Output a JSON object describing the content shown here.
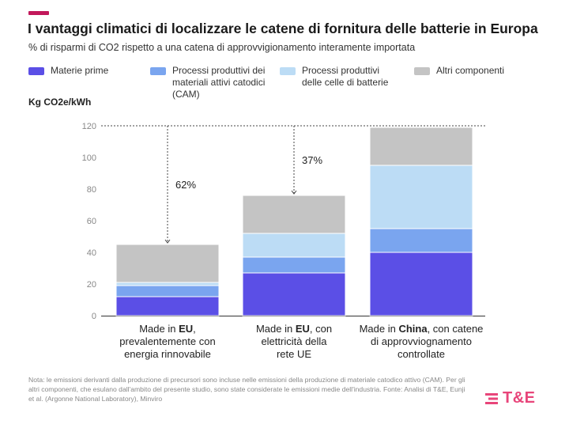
{
  "header": {
    "title": "I vantaggi climatici di localizzare le catene di fornitura delle batterie in Europa",
    "subtitle": "% di risparmi di CO2 rispetto a una catena di approvvigionamento interamente importata",
    "accent_color": "#c2185b"
  },
  "legend": [
    {
      "label": "Materie prime",
      "color": "#5b4fe6"
    },
    {
      "label": "Processi produttivi dei\nmateriali attivi catodici\n(CAM)",
      "color": "#7aa5ef"
    },
    {
      "label": "Processi produttivi\ndelle celle di batterie",
      "color": "#bcdcf5"
    },
    {
      "label": "Altri componenti",
      "color": "#c4c4c4"
    }
  ],
  "unit_label": "Kg CO2e/kWh",
  "chart_data": {
    "type": "bar",
    "stacked": true,
    "categories": [
      {
        "parts": [
          {
            "t": "Made in ",
            "b": false
          },
          {
            "t": "EU",
            "b": true
          },
          {
            "t": ",",
            "b": false
          }
        ],
        "lines": [
          "prevalentemente con",
          "energia rinnovabile"
        ]
      },
      {
        "parts": [
          {
            "t": "Made in ",
            "b": false
          },
          {
            "t": "EU",
            "b": true
          },
          {
            "t": ", con",
            "b": false
          }
        ],
        "lines": [
          "elettricità della",
          "rete UE"
        ]
      },
      {
        "parts": [
          {
            "t": "Made in ",
            "b": false
          },
          {
            "t": "China",
            "b": true
          },
          {
            "t": ", con catene",
            "b": false
          }
        ],
        "lines": [
          "di approvviognamento",
          "controllate"
        ]
      }
    ],
    "series": [
      {
        "name": "Materie prime",
        "values": [
          12,
          27,
          40
        ],
        "color": "#5b4fe6"
      },
      {
        "name": "Processi produttivi dei materiali attivi catodici (CAM)",
        "values": [
          7,
          10,
          15
        ],
        "color": "#7aa5ef"
      },
      {
        "name": "Processi produttivi delle celle di batterie",
        "values": [
          2,
          15,
          40
        ],
        "color": "#bcdcf5"
      },
      {
        "name": "Altri componenti",
        "values": [
          24,
          24,
          24
        ],
        "color": "#c4c4c4"
      }
    ],
    "yticks": [
      0,
      20,
      40,
      60,
      80,
      100,
      120
    ],
    "ylim": [
      0,
      120
    ],
    "annotations": [
      {
        "label": "62%",
        "bar_index": 0
      },
      {
        "label": "37%",
        "bar_index": 1
      }
    ],
    "reference_line": 120
  },
  "footnote": "Nota: le emissioni derivanti dalla produzione di precursori sono incluse nelle emissioni della produzione di materiale catodico attivo (CAM). Per gli altri componenti, che esulano dall'ambito del presente studio, sono state considerate le emissioni medie dell'industria. Fonte: Analisi di T&E, Eunji et al. (Argonne National Laboratory), Minviro",
  "logo": {
    "text": "T&E",
    "color": "#e8457a"
  }
}
